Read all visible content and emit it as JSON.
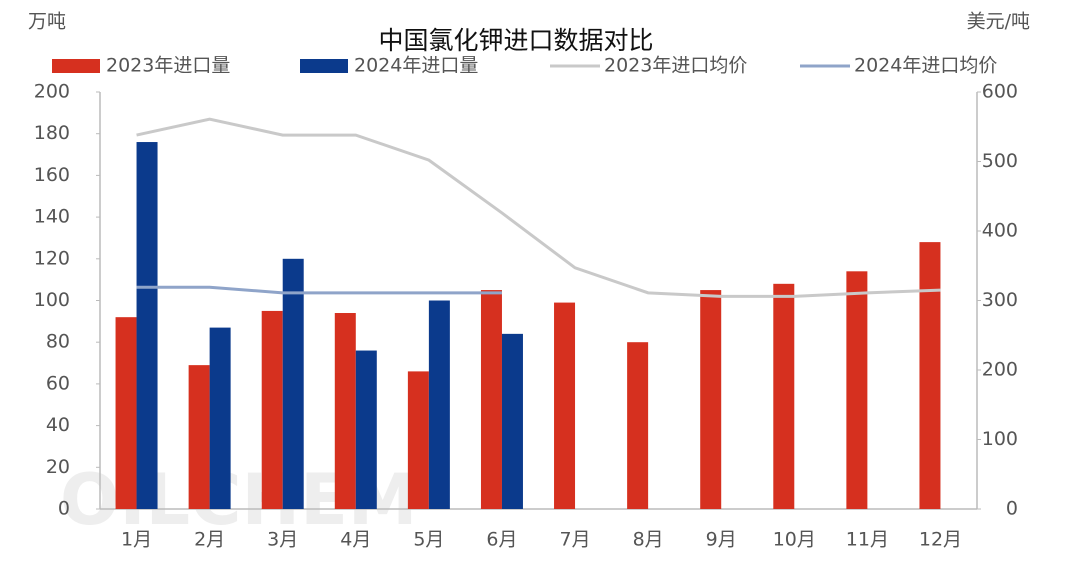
{
  "chart_data": {
    "type": "bar-line",
    "title": "中国氯化钾进口数据对比",
    "y_label": "万吨",
    "y2_label": "美元/吨",
    "watermark": "OILCHEM",
    "categories": [
      "1月",
      "2月",
      "3月",
      "4月",
      "5月",
      "6月",
      "7月",
      "8月",
      "9月",
      "10月",
      "11月",
      "12月"
    ],
    "series": [
      {
        "name": "2023年进口量",
        "kind": "bar",
        "color": "#d6301f",
        "values": [
          92,
          69,
          95,
          94,
          66,
          105,
          99,
          80,
          105,
          108,
          114,
          128
        ]
      },
      {
        "name": "2024年进口量",
        "kind": "bar",
        "color": "#0b3a8c",
        "values": [
          176,
          87,
          120,
          76,
          100,
          84,
          null,
          null,
          null,
          null,
          null,
          null
        ]
      },
      {
        "name": "2023年进口均价",
        "kind": "line",
        "axis": "y2",
        "color": "#c9c9c9",
        "values": [
          538,
          561,
          538,
          538,
          502,
          426,
          347,
          311,
          306,
          306,
          311,
          315
        ]
      },
      {
        "name": "2024年进口均价",
        "kind": "line",
        "axis": "y2",
        "color": "#8fa4c9",
        "values": [
          319,
          319,
          311,
          311,
          311,
          311,
          null,
          null,
          null,
          null,
          null,
          null
        ]
      }
    ],
    "ylim": [
      0,
      200
    ],
    "yticks": [
      0,
      20,
      40,
      60,
      80,
      100,
      120,
      140,
      160,
      180,
      200
    ],
    "y2lim": [
      0,
      600
    ],
    "y2ticks": [
      0,
      100,
      200,
      300,
      400,
      500,
      600
    ],
    "grid": false
  }
}
